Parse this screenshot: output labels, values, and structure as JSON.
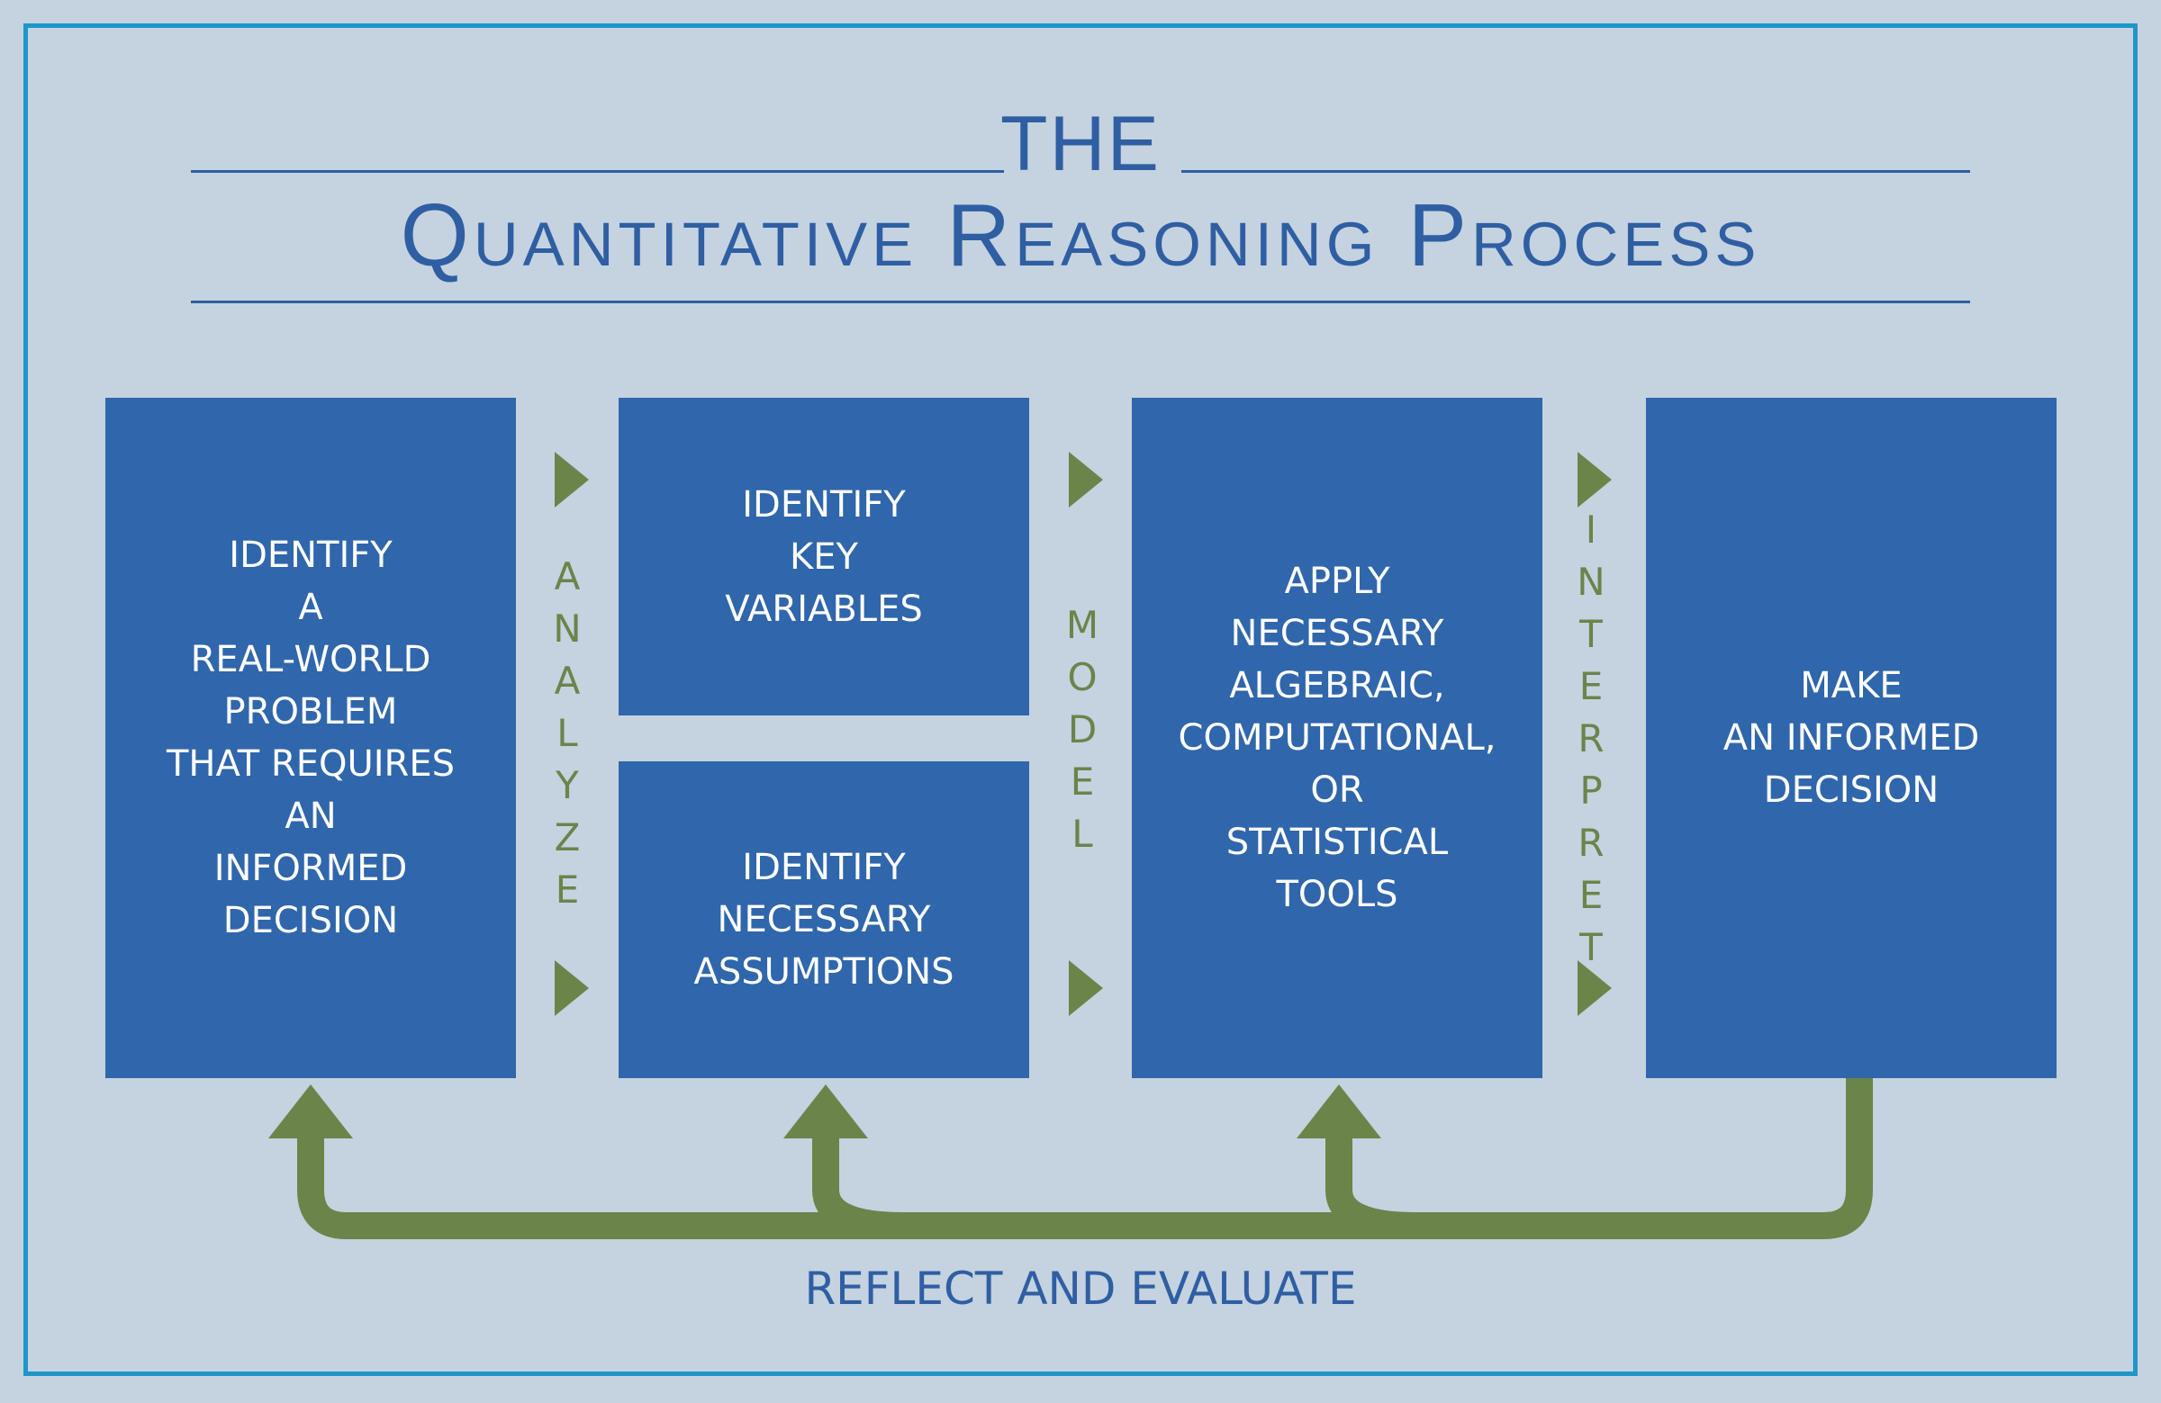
{
  "title": {
    "line1": "THE",
    "line2": "Quantitative Reasoning Process"
  },
  "steps": [
    {
      "label": "IDENTIFY\nA\nREAL-WORLD\nPROBLEM\nTHAT REQUIRES\nAN\nINFORMED\nDECISION"
    },
    {
      "label": "IDENTIFY\nKEY\nVARIABLES"
    },
    {
      "label": "IDENTIFY\nNECESSARY\nASSUMPTIONS"
    },
    {
      "label": "APPLY\nNECESSARY\nALGEBRAIC,\nCOMPUTATIONAL,\nOR\nSTATISTICAL\nTOOLS"
    },
    {
      "label": "MAKE\nAN INFORMED\nDECISION"
    }
  ],
  "transitions": [
    "ANALYZE",
    "MODEL",
    "INTERPRET"
  ],
  "feedback_label": "REFLECT AND EVALUATE",
  "colors": {
    "background": "#c4d3df",
    "frame": "#1e97c8",
    "box": "#3066ab",
    "title": "#2f5ea3",
    "arrow": "#6b844a"
  }
}
